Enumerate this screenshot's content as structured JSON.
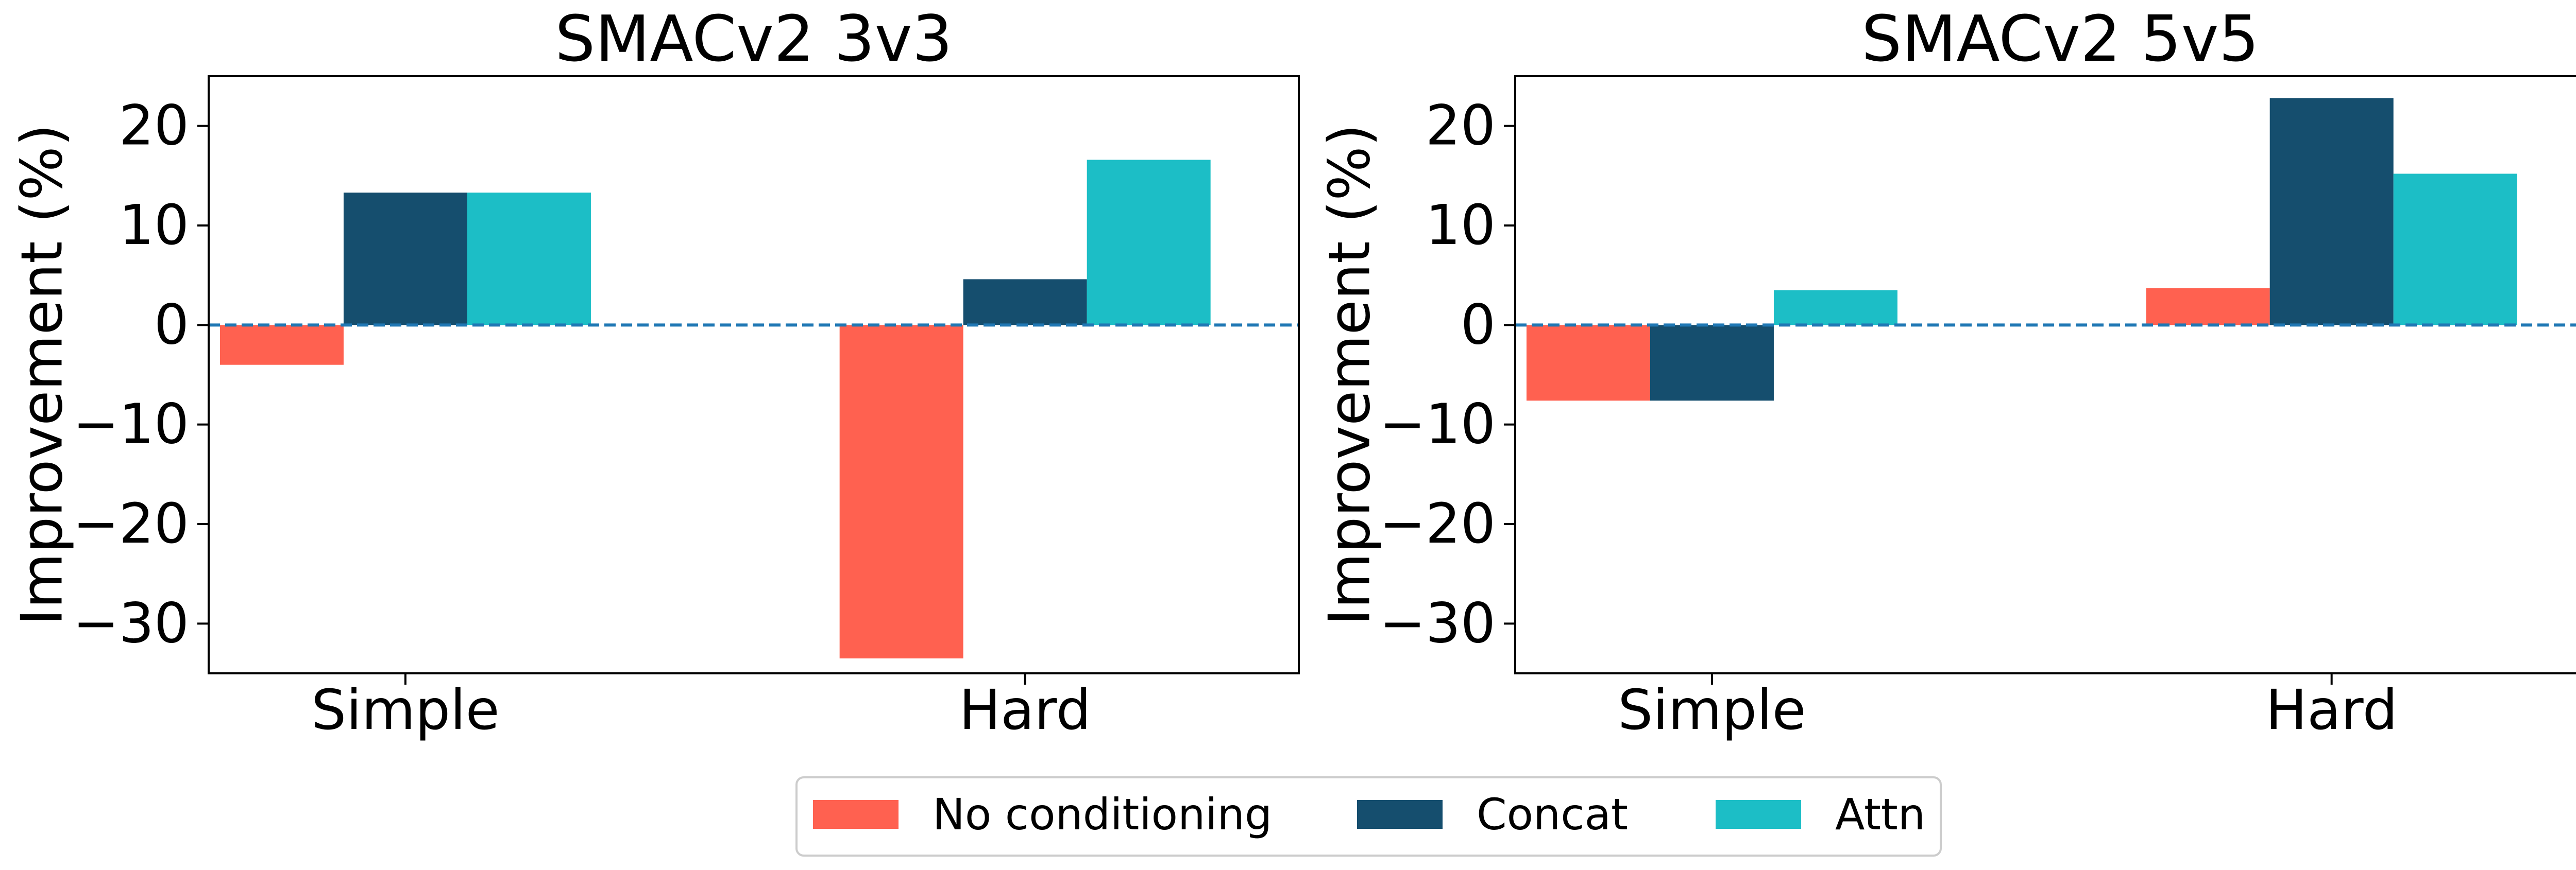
{
  "chart_data": [
    {
      "type": "bar",
      "title": "SMACv2 3v3",
      "xlabel": "",
      "ylabel": "Improvement (%)",
      "ylim": [
        -35,
        25
      ],
      "yticks": [
        -30,
        -20,
        -10,
        0,
        10,
        20
      ],
      "ytick_labels": [
        "−30",
        "−20",
        "−10",
        "0",
        "10",
        "20"
      ],
      "categories": [
        "Simple",
        "Hard"
      ],
      "series": [
        {
          "name": "No conditioning",
          "values": [
            -4.0,
            -33.5
          ]
        },
        {
          "name": "Concat",
          "values": [
            13.3,
            4.6
          ]
        },
        {
          "name": "Attn",
          "values": [
            13.3,
            16.6
          ]
        }
      ],
      "reference_line": {
        "y": 0,
        "style": "dashed"
      },
      "grid": false
    },
    {
      "type": "bar",
      "title": "SMACv2 5v5",
      "xlabel": "",
      "ylabel": "Improvement (%)",
      "ylim": [
        -35,
        25
      ],
      "yticks": [
        -30,
        -20,
        -10,
        0,
        10,
        20
      ],
      "ytick_labels": [
        "−30",
        "−20",
        "−10",
        "0",
        "10",
        "20"
      ],
      "categories": [
        "Simple",
        "Hard"
      ],
      "series": [
        {
          "name": "No conditioning",
          "values": [
            -7.6,
            3.7
          ]
        },
        {
          "name": "Concat",
          "values": [
            -7.6,
            22.8
          ]
        },
        {
          "name": "Attn",
          "values": [
            3.5,
            15.2
          ]
        }
      ],
      "reference_line": {
        "y": 0,
        "style": "dashed"
      },
      "grid": false
    }
  ],
  "colors": {
    "No conditioning": "#ff6150",
    "Concat": "#154e6e",
    "Attn": "#1cbec6",
    "zero_line": "#1f77b4"
  },
  "legend": {
    "placement": "bottom-center",
    "entries": [
      "No conditioning",
      "Concat",
      "Attn"
    ]
  }
}
